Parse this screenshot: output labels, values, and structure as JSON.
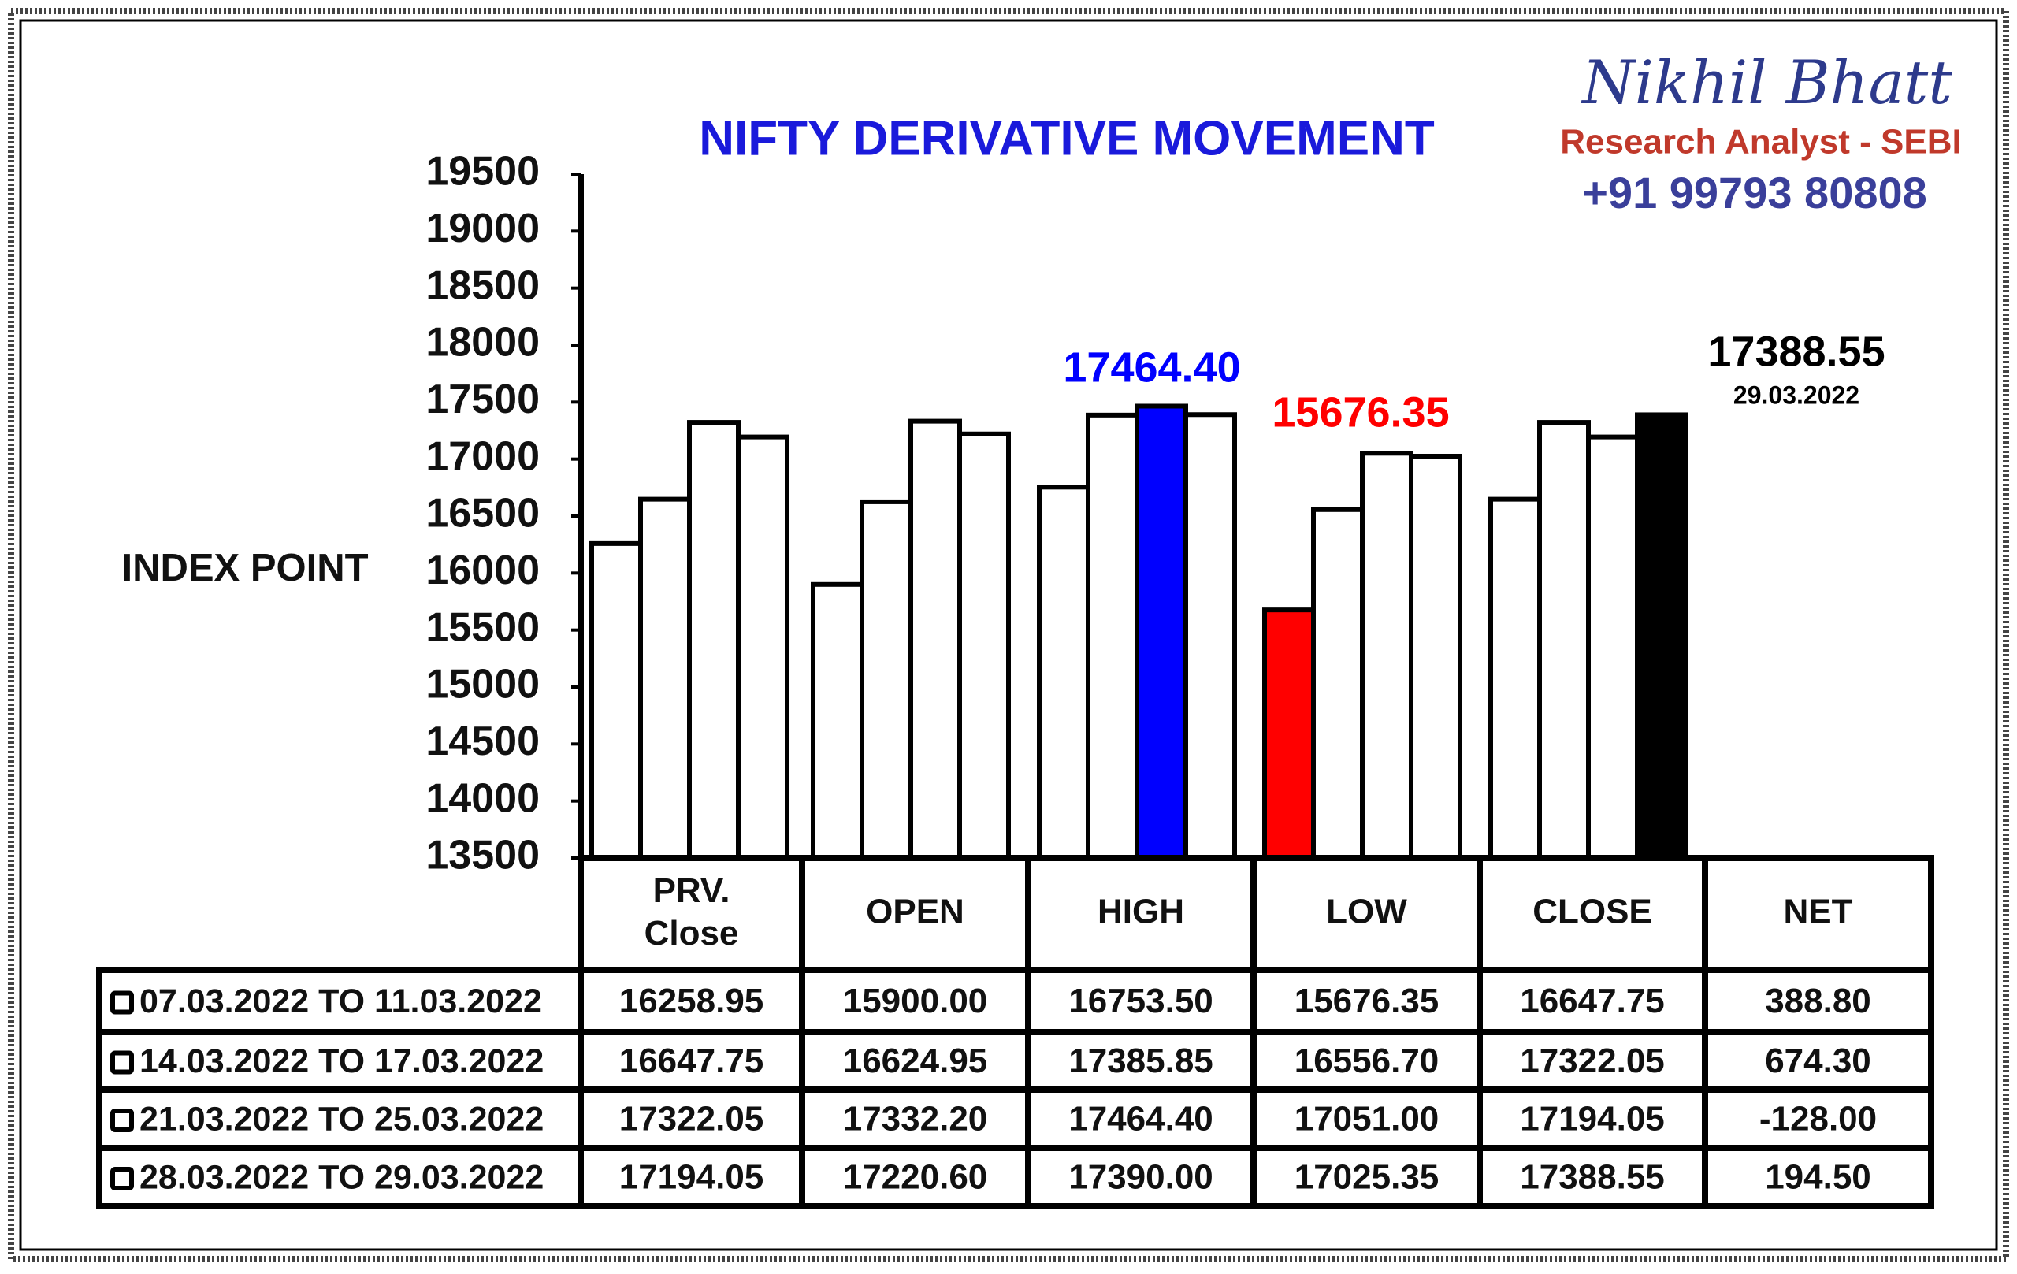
{
  "header": {
    "name": "Nikhil Bhatt",
    "role": "Research Analyst - SEBI",
    "phone": "+91 99793 80808"
  },
  "chart_data": {
    "type": "bar",
    "title": "NIFTY DERIVATIVE MOVEMENT",
    "y_label": "INDEX POINT",
    "categories": [
      "PRV.\nClose",
      "OPEN",
      "HIGH",
      "LOW",
      "CLOSE"
    ],
    "net_name": "NET",
    "series": [
      {
        "name": "07.03.2022 TO 11.03.2022",
        "values": [
          16258.95,
          15900,
          16753.5,
          15676.35,
          16647.75
        ],
        "value_labels": [
          "16258.95",
          "15900.00",
          "16753.50",
          "15676.35",
          "16647.75"
        ],
        "colors": [
          "#ffffff",
          "#ffffff",
          "#ffffff",
          "#ff0000",
          "#ffffff"
        ]
      },
      {
        "name": "14.03.2022 TO 17.03.2022",
        "values": [
          16647.75,
          16624.95,
          17385.85,
          16556.7,
          17322.05
        ],
        "value_labels": [
          "16647.75",
          "16624.95",
          "17385.85",
          "16556.70",
          "17322.05"
        ],
        "colors": [
          "#ffffff",
          "#ffffff",
          "#ffffff",
          "#ffffff",
          "#ffffff"
        ]
      },
      {
        "name": "21.03.2022 TO 25.03.2022",
        "values": [
          17322.05,
          17332.2,
          17464.4,
          17051,
          17194.05
        ],
        "value_labels": [
          "17322.05",
          "17332.20",
          "17464.40",
          "17051.00",
          "17194.05"
        ],
        "colors": [
          "#ffffff",
          "#ffffff",
          "#0000ff",
          "#ffffff",
          "#ffffff"
        ]
      },
      {
        "name": "28.03.2022 TO 29.03.2022",
        "values": [
          17194.05,
          17220.6,
          17390,
          17025.35,
          17388.55
        ],
        "value_labels": [
          "17194.05",
          "17220.60",
          "17390.00",
          "17025.35",
          "17388.55"
        ],
        "colors": [
          "#ffffff",
          "#ffffff",
          "#ffffff",
          "#ffffff",
          "#000000"
        ]
      }
    ],
    "net": [
      {
        "value": 388.8,
        "label": "388.80"
      },
      {
        "value": 674.3,
        "label": "674.30"
      },
      {
        "value": -128,
        "label": "-128.00"
      },
      {
        "value": 194.5,
        "label": "194.50"
      }
    ],
    "annotations": [
      {
        "text": "17464.40",
        "color": "#0000ff"
      },
      {
        "text": "15676.35",
        "color": "#ff0000"
      },
      {
        "text": "17388.55",
        "color": "#000000"
      },
      {
        "text": "29.03.2022",
        "color": "#000000"
      }
    ],
    "ylim": [
      13500,
      19500
    ],
    "yticks": [
      13500,
      14000,
      14500,
      15000,
      15500,
      16000,
      16500,
      17000,
      17500,
      18000,
      18500,
      19000,
      19500
    ]
  }
}
